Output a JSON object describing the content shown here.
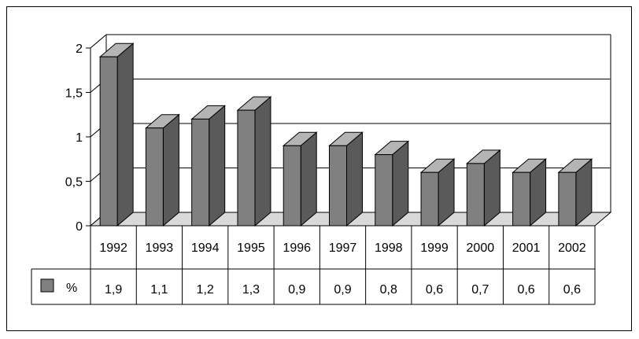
{
  "chart_data": {
    "type": "bar",
    "title": "",
    "xlabel": "",
    "ylabel": "",
    "categories": [
      "1992",
      "1993",
      "1994",
      "1995",
      "1996",
      "1997",
      "1998",
      "1999",
      "2000",
      "2001",
      "2002"
    ],
    "series": [
      {
        "name": "%",
        "values": [
          1.9,
          1.1,
          1.2,
          1.3,
          0.9,
          0.9,
          0.8,
          0.6,
          0.7,
          0.6,
          0.6
        ],
        "value_labels": [
          "1,9",
          "1,1",
          "1,2",
          "1,3",
          "0,9",
          "0,9",
          "0,8",
          "0,6",
          "0,7",
          "0,6",
          "0,6"
        ]
      }
    ],
    "ylim": [
      0,
      2
    ],
    "yticks": [
      0,
      0.5,
      1,
      1.5,
      2
    ],
    "ytick_labels": [
      "0",
      "0,5",
      "1",
      "1,5",
      "2"
    ],
    "grid": true,
    "three_d": true,
    "legend_placement": "data-table-left",
    "colors": {
      "bar_front": "#808080",
      "bar_side": "#5a5a5a",
      "bar_top": "#b4b4b4",
      "floor": "#d9d9d9"
    }
  }
}
